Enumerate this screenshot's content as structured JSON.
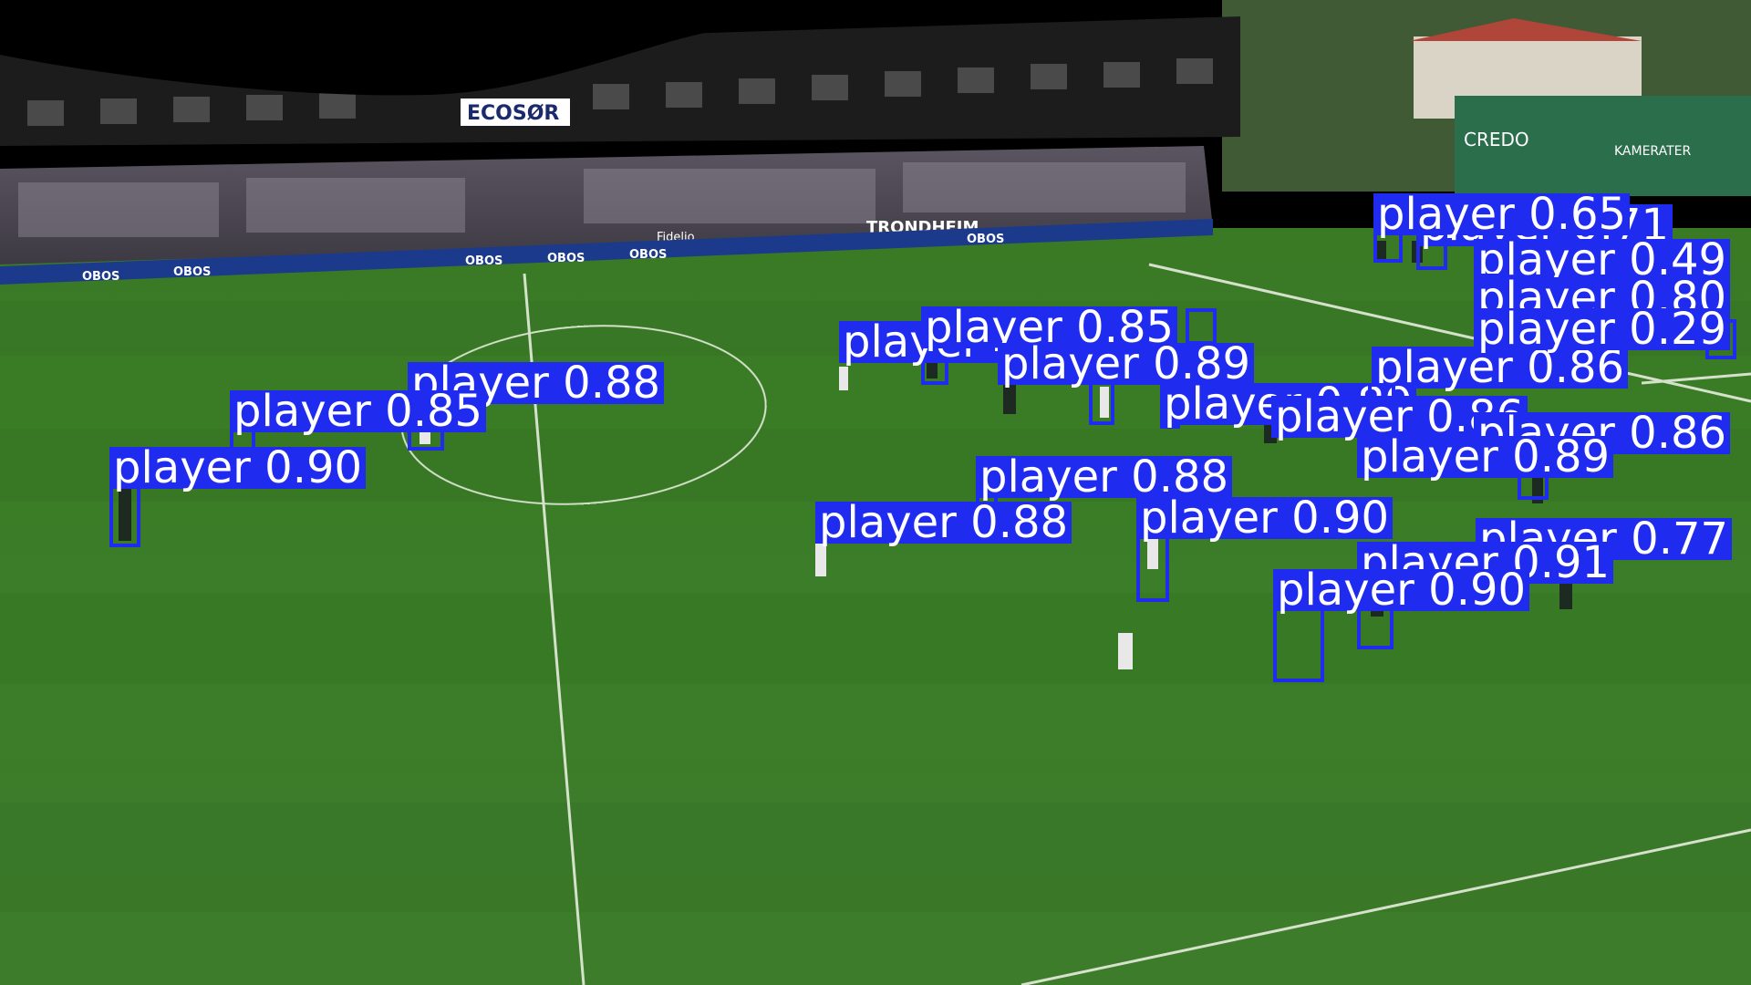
{
  "scene": {
    "stadium_signs": [
      "ECOSØR",
      "CREDO",
      "KAMERATER",
      "TRONDHEIM",
      "OBOS",
      "Fidelio"
    ],
    "colors": {
      "box": "#1f2cf0",
      "label_text": "#ffffff",
      "pitch": "#3f7f2a",
      "stand_roof": "#1c1c1c"
    }
  },
  "detections": [
    {
      "label": "player 0.88"
    },
    {
      "label": "player 0.85"
    },
    {
      "label": "player 0.90"
    },
    {
      "label": "player 0.87"
    },
    {
      "label": "player 0.85"
    },
    {
      "label": "player 0.89"
    },
    {
      "label": "player 0.86"
    },
    {
      "label": "player 0.89"
    },
    {
      "label": "player 0.86"
    },
    {
      "label": "player 0.86"
    },
    {
      "label": "player 0.88"
    },
    {
      "label": "player 0.89"
    },
    {
      "label": "player 0.88"
    },
    {
      "label": "player 0.90"
    },
    {
      "label": "player 0.77"
    },
    {
      "label": "player 0.91"
    },
    {
      "label": "player 0.90"
    },
    {
      "label": "player 0.71"
    },
    {
      "label": "player 0.49"
    },
    {
      "label": "player 0.80"
    },
    {
      "label": "player 0.29"
    },
    {
      "label": "player 0.65"
    }
  ]
}
